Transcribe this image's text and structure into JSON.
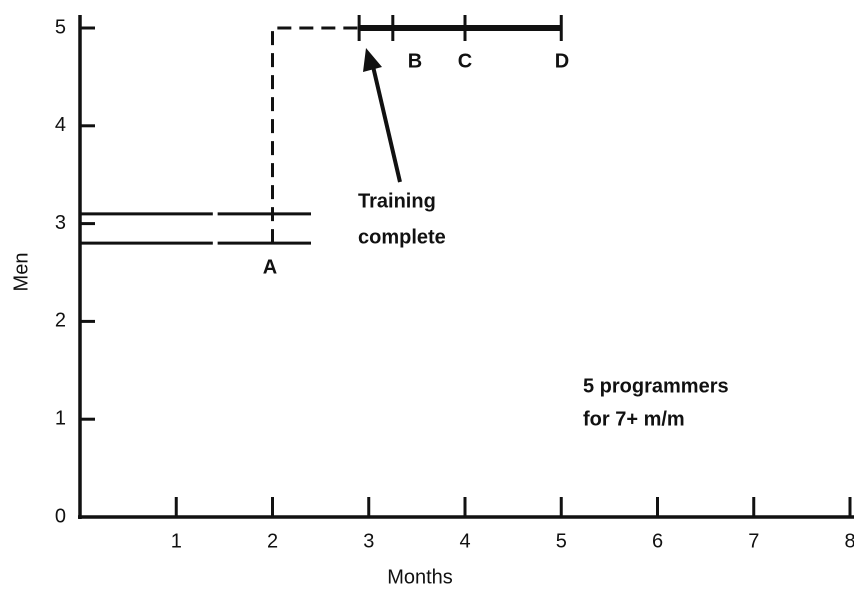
{
  "chart_data": {
    "type": "line",
    "xlabel": "Months",
    "ylabel": "Men",
    "xlim": [
      0,
      8
    ],
    "ylim": [
      0,
      5
    ],
    "xticks": [
      1,
      2,
      3,
      4,
      5,
      6,
      7,
      8
    ],
    "yticks": [
      0,
      1,
      2,
      3,
      4,
      5
    ],
    "color": "#111111",
    "series": [
      {
        "x": [
          0,
          1.38,
          1.4,
          1.43,
          2.4
        ],
        "values": [
          3.1,
          3.1,
          null,
          3.1,
          3.1
        ],
        "dashed": false,
        "markers": false
      },
      {
        "x": [
          0,
          1.38,
          1.4,
          1.43,
          2.4
        ],
        "values": [
          2.8,
          2.8,
          null,
          2.8,
          2.8
        ],
        "dashed": false,
        "markers": false
      },
      {
        "x": [
          2,
          2,
          2.9
        ],
        "values": [
          2.8,
          5,
          5
        ],
        "dashed": true,
        "markers": false
      },
      {
        "x": [
          2.9,
          3.25,
          4,
          5
        ],
        "values": [
          5,
          5,
          5,
          5
        ],
        "dashed": false,
        "markers": true,
        "thick": true
      }
    ],
    "point_labels": [
      "A",
      "B",
      "C",
      "D"
    ],
    "annotations": [
      [
        "Training",
        "complete"
      ],
      [
        "5 programmers",
        "for 7+ m/m"
      ]
    ]
  }
}
